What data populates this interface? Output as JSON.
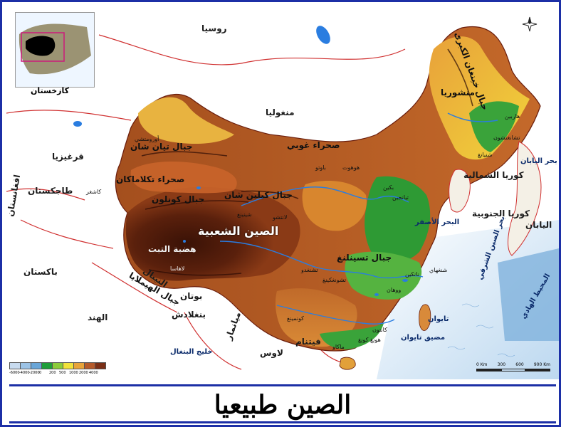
{
  "title": "الصين  طبيعيا",
  "inset": {
    "label": "كازخستان"
  },
  "legend": {
    "values": [
      "-6000",
      "-4000",
      "-2000",
      "0",
      "200",
      "500",
      "1000",
      "2000",
      "4000"
    ],
    "colors": [
      "#c8dbef",
      "#9cc3e6",
      "#6aa6d8",
      "#1f9e3a",
      "#8ccc3a",
      "#f1e23a",
      "#e8a43a",
      "#b55a2a",
      "#7a2f16"
    ]
  },
  "scale": {
    "ticks": [
      "0 Km",
      "300",
      "600",
      "900 Km"
    ]
  },
  "countries": {
    "russia": "روسيا",
    "mongolia": "منغوليا",
    "kyrgyzstan": "قرغيزيا",
    "tajikistan": "طاجكستان",
    "afghanistan": "افغانستان",
    "pakistan": "باكستان",
    "india": "الهند",
    "nepal": "النيبال",
    "bhutan": "بوتان",
    "bangladesh": "بنغلادش",
    "myanmar": "ميانمار",
    "vietnam": "فيتنام",
    "laos": "لاوس",
    "north_korea": "كوريا الشمالية",
    "south_korea": "كوريا الجنوبية",
    "japan": "اليابان",
    "china": "الصين الشعبية"
  },
  "seas": {
    "sea_of_japan": "بحر اليابان",
    "yellow_sea": "البحر الأصفر",
    "east_china_sea": "بحر الصين الشرقي",
    "pacific": "المحيط الهادي",
    "bay_of_bengal": "خليج البنغال",
    "taiwan": "تايوان",
    "taiwan_strait": "مضيق تايوان"
  },
  "regions": {
    "gobi": "صحراء غوبي",
    "taklamakan": "صحراء تكلاماكان",
    "tianshan": "جبال تيان شان",
    "kunlun": "جبال كونلون",
    "qilian": "جبال كيلين شان",
    "tibet_plateau": "هضبة التبت",
    "himalaya": "جبال الهيملايا",
    "khingan": "جبال خينغان الكبرى",
    "manchuria": "منشوريا",
    "qinling": "جبال تسينلنغ"
  },
  "cities": {
    "beijing": "بكين",
    "tianjin": "تيانجين",
    "shanghai": "شنغهاي",
    "harbin": "هاربين",
    "changchun": "تشانغتشون",
    "shenyang": "شنيانغ",
    "lanzhou": "لانتشو",
    "xining": "شينينغ",
    "lhasa": "لاهاسا",
    "chengdu": "تشنغدو",
    "chongqing": "تشونغكينغ",
    "kunming": "كونمينغ",
    "guangzhou": "كانتون",
    "wuhan": "ووهان",
    "nanjing": "نانكين",
    "hohhot": "هوهوت",
    "baotou": "باوتو",
    "urumqi": "أورومتشي",
    "kashgar": "كاشغر",
    "hongkong": "هونغ كونغ",
    "macau": "ماكاو"
  }
}
